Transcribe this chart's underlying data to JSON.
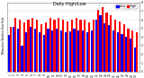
{
  "title": "Milwaukee Weather Dew Point",
  "subtitle": "Daily High/Low",
  "color_high": "#ff0000",
  "color_low": "#0000ff",
  "background_color": "#ffffff",
  "legend_high": "High",
  "legend_low": "Low",
  "bar_width": 0.45,
  "days": [
    1,
    2,
    3,
    4,
    5,
    6,
    7,
    8,
    9,
    10,
    11,
    12,
    13,
    14,
    15,
    16,
    17,
    18,
    19,
    20,
    21,
    22,
    23,
    24,
    25,
    26,
    27,
    28,
    29,
    30
  ],
  "high": [
    52,
    62,
    60,
    57,
    60,
    62,
    60,
    55,
    57,
    62,
    60,
    62,
    60,
    58,
    60,
    62,
    60,
    60,
    57,
    60,
    72,
    75,
    68,
    65,
    60,
    58,
    55,
    50,
    48,
    45
  ],
  "low": [
    42,
    52,
    50,
    30,
    45,
    52,
    50,
    45,
    42,
    50,
    48,
    50,
    48,
    45,
    47,
    50,
    48,
    48,
    45,
    48,
    60,
    65,
    56,
    54,
    48,
    45,
    43,
    40,
    38,
    28
  ],
  "ylim": [
    0,
    80
  ],
  "yticks": [
    0,
    10,
    20,
    30,
    40,
    50,
    60,
    70,
    80
  ],
  "ytick_labels": [
    "0",
    "1",
    "2",
    "3",
    "4",
    "5",
    "6",
    "7",
    "8"
  ],
  "tick_labels": [
    "1",
    "2",
    "3",
    "4",
    "5",
    "6",
    "7",
    "8",
    "9",
    "10",
    "11",
    "12",
    "13",
    "14",
    "15",
    "16",
    "17",
    "18",
    "19",
    "20",
    "21",
    "22",
    "23",
    "24",
    "25",
    "26",
    "27",
    "28",
    "29",
    "30"
  ],
  "title_fontsize": 3.5,
  "tick_fontsize": 2.2,
  "legend_fontsize": 2.5
}
